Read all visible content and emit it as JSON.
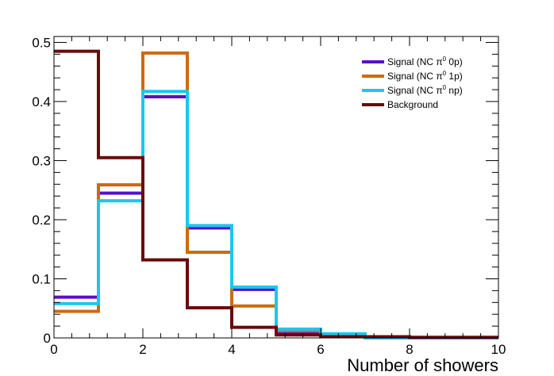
{
  "chart_data": {
    "type": "step-histogram",
    "title": "",
    "xlabel": "Number of showers",
    "ylabel": "",
    "xlim": [
      0,
      10
    ],
    "ylim": [
      0,
      0.51
    ],
    "bin_edges": [
      0,
      1,
      2,
      3,
      4,
      5,
      6,
      7,
      8,
      9,
      10
    ],
    "x_ticks": [
      0,
      2,
      4,
      6,
      8,
      10
    ],
    "x_tick_labels": [
      "0",
      "2",
      "4",
      "6",
      "8",
      "10"
    ],
    "y_ticks": [
      0,
      0.1,
      0.2,
      0.3,
      0.4,
      0.5
    ],
    "y_tick_labels": [
      "0",
      "0.1",
      "0.2",
      "0.3",
      "0.4",
      "0.5"
    ],
    "grid": false,
    "legend_position": "top-right",
    "series": [
      {
        "name": "Signal (NC π⁰ 0p)",
        "legend_main": "Signal (NC π",
        "legend_sup": "0",
        "legend_tail": " 0p)",
        "color": "#5b0fc7",
        "values": [
          0.069,
          0.245,
          0.408,
          0.186,
          0.082,
          0.008,
          0.002,
          0,
          0,
          0
        ]
      },
      {
        "name": "Signal (NC π⁰ 1p)",
        "legend_main": "Signal (NC π",
        "legend_sup": "0",
        "legend_tail": " 1p)",
        "color": "#cc6a12",
        "values": [
          0.045,
          0.259,
          0.482,
          0.145,
          0.054,
          0.012,
          0.003,
          0,
          0,
          0
        ]
      },
      {
        "name": "Signal (NC π⁰ np)",
        "legend_main": "Signal (NC π",
        "legend_sup": "0",
        "legend_tail": " np)",
        "color": "#1cc6ee",
        "values": [
          0.058,
          0.232,
          0.417,
          0.19,
          0.086,
          0.015,
          0.007,
          0,
          0,
          0
        ]
      },
      {
        "name": "Background",
        "legend_main": "Background",
        "legend_sup": "",
        "legend_tail": "",
        "color": "#6a0a0a",
        "values": [
          0.485,
          0.305,
          0.132,
          0.051,
          0.018,
          0.005,
          0.002,
          0.002,
          0.001,
          0.001
        ]
      }
    ]
  }
}
